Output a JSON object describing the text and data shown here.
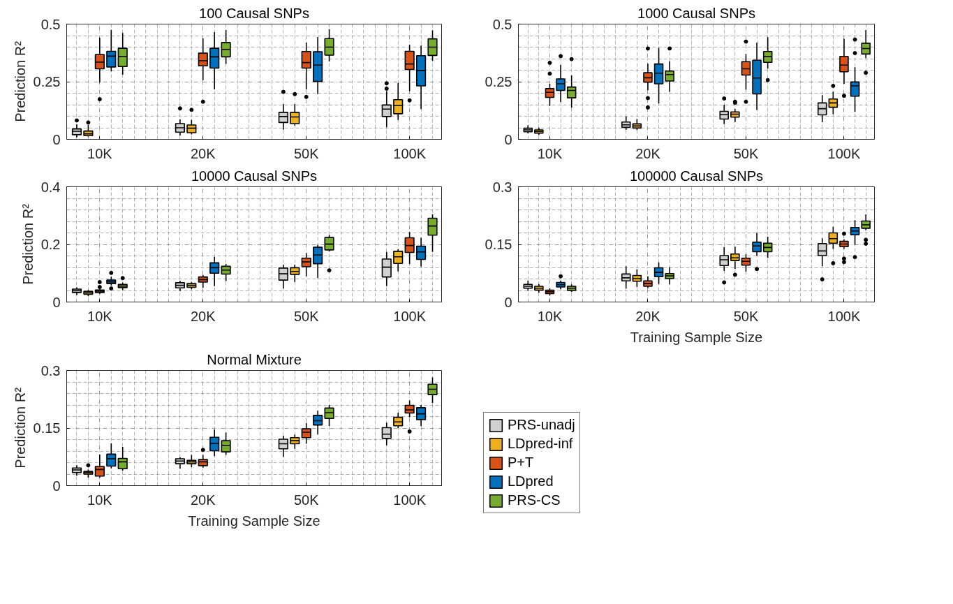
{
  "chart_data": [
    {
      "type": "box",
      "title": "100 Causal SNPs",
      "ylabel": "Prediction R²",
      "categories": [
        "10K",
        "20K",
        "50K",
        "100K"
      ],
      "ylim": [
        0,
        0.5
      ],
      "yticks": [
        0,
        0.25,
        0.5
      ],
      "grid": true,
      "series": [
        {
          "color": "#d0d0d0",
          "boxes": [
            {
              "low": 0.008,
              "q1": 0.02,
              "median": 0.035,
              "q3": 0.045,
              "high": 0.065,
              "outliers": [
                0.082
              ]
            },
            {
              "low": 0.016,
              "q1": 0.031,
              "median": 0.05,
              "q3": 0.068,
              "high": 0.086,
              "outliers": [
                0.134
              ]
            },
            {
              "low": 0.042,
              "q1": 0.073,
              "median": 0.099,
              "q3": 0.117,
              "high": 0.153,
              "outliers": [
                0.206
              ]
            },
            {
              "low": 0.052,
              "q1": 0.099,
              "median": 0.131,
              "q3": 0.149,
              "high": 0.209,
              "outliers": [
                0.243,
                0.22
              ]
            }
          ]
        },
        {
          "color": "#edb120",
          "boxes": [
            {
              "low": 0.01,
              "q1": 0.016,
              "median": 0.024,
              "q3": 0.036,
              "high": 0.063,
              "outliers": [
                0.073
              ]
            },
            {
              "low": 0.021,
              "q1": 0.029,
              "median": 0.048,
              "q3": 0.062,
              "high": 0.084,
              "outliers": [
                0.128
              ]
            },
            {
              "low": 0.06,
              "q1": 0.068,
              "median": 0.097,
              "q3": 0.117,
              "high": 0.153,
              "outliers": [
                0.196
              ]
            },
            {
              "low": 0.084,
              "q1": 0.111,
              "median": 0.146,
              "q3": 0.172,
              "high": 0.245
            }
          ]
        },
        {
          "color": "#d95319",
          "boxes": [
            {
              "low": 0.246,
              "q1": 0.306,
              "median": 0.335,
              "q3": 0.368,
              "high": 0.441,
              "outliers": [
                0.174
              ]
            },
            {
              "low": 0.256,
              "q1": 0.319,
              "median": 0.341,
              "q3": 0.374,
              "high": 0.438,
              "outliers": [
                0.163
              ]
            },
            {
              "low": 0.217,
              "q1": 0.309,
              "median": 0.333,
              "q3": 0.381,
              "high": 0.42,
              "outliers": [
                0.184
              ]
            },
            {
              "low": 0.209,
              "q1": 0.303,
              "median": 0.327,
              "q3": 0.382,
              "high": 0.41,
              "outliers": [
                0.169
              ]
            }
          ]
        },
        {
          "color": "#0072bd",
          "boxes": [
            {
              "low": 0.295,
              "q1": 0.314,
              "median": 0.361,
              "q3": 0.382,
              "high": 0.475
            },
            {
              "low": 0.217,
              "q1": 0.309,
              "median": 0.358,
              "q3": 0.395,
              "high": 0.465
            },
            {
              "low": 0.197,
              "q1": 0.251,
              "median": 0.322,
              "q3": 0.38,
              "high": 0.444
            },
            {
              "low": 0.131,
              "q1": 0.232,
              "median": 0.298,
              "q3": 0.363,
              "high": 0.407
            }
          ]
        },
        {
          "color": "#77ac30",
          "boxes": [
            {
              "low": 0.28,
              "q1": 0.316,
              "median": 0.36,
              "q3": 0.395,
              "high": 0.461
            },
            {
              "low": 0.327,
              "q1": 0.358,
              "median": 0.39,
              "q3": 0.42,
              "high": 0.474
            },
            {
              "low": 0.338,
              "q1": 0.365,
              "median": 0.4,
              "q3": 0.437,
              "high": 0.478
            },
            {
              "low": 0.34,
              "q1": 0.364,
              "median": 0.4,
              "q3": 0.436,
              "high": 0.473
            }
          ]
        }
      ]
    },
    {
      "type": "box",
      "title": "1000 Causal SNPs",
      "categories": [
        "10K",
        "20K",
        "50K",
        "100K"
      ],
      "ylim": [
        0,
        0.5
      ],
      "yticks": [
        0,
        0.25,
        0.5
      ],
      "grid": true,
      "series": [
        {
          "color": "#d0d0d0",
          "boxes": [
            {
              "low": 0.026,
              "q1": 0.033,
              "median": 0.041,
              "q3": 0.048,
              "high": 0.061
            },
            {
              "low": 0.041,
              "q1": 0.052,
              "median": 0.063,
              "q3": 0.075,
              "high": 0.099
            },
            {
              "low": 0.066,
              "q1": 0.088,
              "median": 0.107,
              "q3": 0.121,
              "high": 0.15,
              "outliers": [
                0.177
              ]
            },
            {
              "low": 0.074,
              "q1": 0.106,
              "median": 0.133,
              "q3": 0.158,
              "high": 0.192
            }
          ]
        },
        {
          "color": "#edb120",
          "boxes": [
            {
              "low": 0.019,
              "q1": 0.027,
              "median": 0.034,
              "q3": 0.041,
              "high": 0.051
            },
            {
              "low": 0.04,
              "q1": 0.049,
              "median": 0.058,
              "q3": 0.067,
              "high": 0.088
            },
            {
              "low": 0.075,
              "q1": 0.096,
              "median": 0.109,
              "q3": 0.119,
              "high": 0.132,
              "outliers": [
                0.163,
                0.158
              ]
            },
            {
              "low": 0.109,
              "q1": 0.139,
              "median": 0.158,
              "q3": 0.175,
              "high": 0.207,
              "outliers": [
                0.232
              ]
            }
          ]
        },
        {
          "color": "#d95319",
          "boxes": [
            {
              "low": 0.145,
              "q1": 0.182,
              "median": 0.204,
              "q3": 0.22,
              "high": 0.241,
              "outliers": [
                0.332,
                0.285
              ]
            },
            {
              "low": 0.213,
              "q1": 0.248,
              "median": 0.267,
              "q3": 0.289,
              "high": 0.328,
              "outliers": [
                0.394,
                0.179,
                0.138
              ]
            },
            {
              "low": 0.215,
              "q1": 0.279,
              "median": 0.306,
              "q3": 0.337,
              "high": 0.37,
              "outliers": [
                0.424,
                0.163
              ]
            },
            {
              "low": 0.241,
              "q1": 0.293,
              "median": 0.322,
              "q3": 0.36,
              "high": 0.436,
              "outliers": [
                0.189
              ]
            }
          ]
        },
        {
          "color": "#0072bd",
          "boxes": [
            {
              "low": 0.161,
              "q1": 0.212,
              "median": 0.241,
              "q3": 0.262,
              "high": 0.323,
              "outliers": [
                0.361
              ]
            },
            {
              "low": 0.155,
              "q1": 0.241,
              "median": 0.287,
              "q3": 0.327,
              "high": 0.396
            },
            {
              "low": 0.127,
              "q1": 0.197,
              "median": 0.266,
              "q3": 0.343,
              "high": 0.419
            },
            {
              "low": 0.119,
              "q1": 0.187,
              "median": 0.232,
              "q3": 0.249,
              "high": 0.313,
              "outliers": [
                0.433,
                0.374
              ]
            }
          ]
        },
        {
          "color": "#77ac30",
          "boxes": [
            {
              "low": 0.137,
              "q1": 0.18,
              "median": 0.212,
              "q3": 0.227,
              "high": 0.277,
              "outliers": [
                0.348
              ]
            },
            {
              "low": 0.206,
              "q1": 0.253,
              "median": 0.281,
              "q3": 0.296,
              "high": 0.339,
              "outliers": [
                0.394
              ]
            },
            {
              "low": 0.307,
              "q1": 0.334,
              "median": 0.36,
              "q3": 0.381,
              "high": 0.443,
              "outliers": [
                0.257
              ]
            },
            {
              "low": 0.352,
              "q1": 0.37,
              "median": 0.394,
              "q3": 0.417,
              "high": 0.474,
              "outliers": [
                0.289
              ]
            }
          ]
        }
      ]
    },
    {
      "type": "box",
      "title": "10000 Causal SNPs",
      "ylabel": "Prediction R²",
      "categories": [
        "10K",
        "20K",
        "50K",
        "100K"
      ],
      "ylim": [
        0,
        0.4
      ],
      "yticks": [
        0,
        0.2,
        0.4
      ],
      "grid": true,
      "series": [
        {
          "color": "#d0d0d0",
          "boxes": [
            {
              "low": 0.025,
              "q1": 0.033,
              "median": 0.039,
              "q3": 0.045,
              "high": 0.051
            },
            {
              "low": 0.038,
              "q1": 0.049,
              "median": 0.058,
              "q3": 0.067,
              "high": 0.074
            },
            {
              "low": 0.047,
              "q1": 0.076,
              "median": 0.098,
              "q3": 0.118,
              "high": 0.13
            },
            {
              "low": 0.055,
              "q1": 0.087,
              "median": 0.121,
              "q3": 0.149,
              "high": 0.174
            }
          ]
        },
        {
          "color": "#edb120",
          "boxes": [
            {
              "low": 0.02,
              "q1": 0.027,
              "median": 0.032,
              "q3": 0.037,
              "high": 0.042
            },
            {
              "low": 0.044,
              "q1": 0.051,
              "median": 0.058,
              "q3": 0.064,
              "high": 0.07
            },
            {
              "low": 0.07,
              "q1": 0.096,
              "median": 0.106,
              "q3": 0.119,
              "high": 0.13
            },
            {
              "low": 0.106,
              "q1": 0.134,
              "median": 0.157,
              "q3": 0.176,
              "high": 0.183
            }
          ]
        },
        {
          "color": "#d95319",
          "boxes": [
            {
              "low": 0.027,
              "q1": 0.033,
              "median": 0.038,
              "q3": 0.042,
              "high": 0.045,
              "outliers": [
                0.069,
                0.052
              ]
            },
            {
              "low": 0.049,
              "q1": 0.069,
              "median": 0.078,
              "q3": 0.087,
              "high": 0.094
            },
            {
              "low": 0.089,
              "q1": 0.123,
              "median": 0.139,
              "q3": 0.152,
              "high": 0.17
            },
            {
              "low": 0.132,
              "q1": 0.172,
              "median": 0.196,
              "q3": 0.223,
              "high": 0.243
            }
          ]
        },
        {
          "color": "#0072bd",
          "boxes": [
            {
              "low": 0.057,
              "q1": 0.064,
              "median": 0.07,
              "q3": 0.076,
              "high": 0.087,
              "outliers": [
                0.101,
                0.047
              ]
            },
            {
              "low": 0.055,
              "q1": 0.1,
              "median": 0.119,
              "q3": 0.136,
              "high": 0.157
            },
            {
              "low": 0.083,
              "q1": 0.133,
              "median": 0.163,
              "q3": 0.19,
              "high": 0.199
            },
            {
              "low": 0.123,
              "q1": 0.148,
              "median": 0.174,
              "q3": 0.194,
              "high": 0.223
            }
          ]
        },
        {
          "color": "#77ac30",
          "boxes": [
            {
              "low": 0.042,
              "q1": 0.05,
              "median": 0.055,
              "q3": 0.061,
              "high": 0.067,
              "outliers": [
                0.083
              ]
            },
            {
              "low": 0.073,
              "q1": 0.097,
              "median": 0.111,
              "q3": 0.124,
              "high": 0.132
            },
            {
              "low": 0.175,
              "q1": 0.181,
              "median": 0.201,
              "q3": 0.224,
              "high": 0.233,
              "outliers": [
                0.11
              ]
            },
            {
              "low": 0.174,
              "q1": 0.232,
              "median": 0.264,
              "q3": 0.291,
              "high": 0.304
            }
          ]
        }
      ]
    },
    {
      "type": "box",
      "title": "100000 Causal SNPs",
      "xlabel": "Training Sample Size",
      "categories": [
        "10K",
        "20K",
        "50K",
        "100K"
      ],
      "ylim": [
        0,
        0.3
      ],
      "yticks": [
        0,
        0.15,
        0.3
      ],
      "grid": true,
      "series": [
        {
          "color": "#d0d0d0",
          "boxes": [
            {
              "low": 0.029,
              "q1": 0.036,
              "median": 0.041,
              "q3": 0.046,
              "high": 0.056
            },
            {
              "low": 0.035,
              "q1": 0.055,
              "median": 0.063,
              "q3": 0.073,
              "high": 0.093
            },
            {
              "low": 0.081,
              "q1": 0.095,
              "median": 0.11,
              "q3": 0.121,
              "high": 0.143,
              "outliers": [
                0.051
              ]
            },
            {
              "low": 0.093,
              "q1": 0.121,
              "median": 0.133,
              "q3": 0.152,
              "high": 0.166,
              "outliers": [
                0.059
              ]
            }
          ]
        },
        {
          "color": "#edb120",
          "boxes": [
            {
              "low": 0.024,
              "q1": 0.031,
              "median": 0.036,
              "q3": 0.041,
              "high": 0.047
            },
            {
              "low": 0.039,
              "q1": 0.054,
              "median": 0.061,
              "q3": 0.069,
              "high": 0.085
            },
            {
              "low": 0.086,
              "q1": 0.108,
              "median": 0.115,
              "q3": 0.125,
              "high": 0.144,
              "outliers": [
                0.071
              ]
            },
            {
              "low": 0.138,
              "q1": 0.153,
              "median": 0.165,
              "q3": 0.18,
              "high": 0.196,
              "outliers": [
                0.101
              ]
            }
          ]
        },
        {
          "color": "#d95319",
          "boxes": [
            {
              "low": 0.017,
              "q1": 0.022,
              "median": 0.027,
              "q3": 0.031,
              "high": 0.036
            },
            {
              "low": 0.036,
              "q1": 0.041,
              "median": 0.048,
              "q3": 0.055,
              "high": 0.067
            },
            {
              "low": 0.079,
              "q1": 0.096,
              "median": 0.106,
              "q3": 0.114,
              "high": 0.124
            },
            {
              "low": 0.138,
              "q1": 0.144,
              "median": 0.151,
              "q3": 0.158,
              "high": 0.163,
              "outliers": [
                0.178,
                0.113,
                0.104
              ]
            }
          ]
        },
        {
          "color": "#0072bd",
          "boxes": [
            {
              "low": 0.033,
              "q1": 0.039,
              "median": 0.045,
              "q3": 0.051,
              "high": 0.056,
              "outliers": [
                0.067
              ]
            },
            {
              "low": 0.047,
              "q1": 0.066,
              "median": 0.077,
              "q3": 0.089,
              "high": 0.103
            },
            {
              "low": 0.12,
              "q1": 0.131,
              "median": 0.146,
              "q3": 0.156,
              "high": 0.18,
              "outliers": [
                0.086
              ]
            },
            {
              "low": 0.149,
              "q1": 0.175,
              "median": 0.185,
              "q3": 0.194,
              "high": 0.213,
              "outliers": [
                0.117
              ]
            }
          ]
        },
        {
          "color": "#77ac30",
          "boxes": [
            {
              "low": 0.026,
              "q1": 0.03,
              "median": 0.036,
              "q3": 0.041,
              "high": 0.046
            },
            {
              "low": 0.046,
              "q1": 0.061,
              "median": 0.068,
              "q3": 0.074,
              "high": 0.091
            },
            {
              "low": 0.115,
              "q1": 0.131,
              "median": 0.142,
              "q3": 0.153,
              "high": 0.17
            },
            {
              "low": 0.187,
              "q1": 0.192,
              "median": 0.201,
              "q3": 0.211,
              "high": 0.228,
              "outliers": [
                0.162,
                0.152
              ]
            }
          ]
        }
      ]
    },
    {
      "type": "box",
      "title": "Normal Mixture",
      "ylabel": "Prediction R²",
      "xlabel": "Training Sample Size",
      "categories": [
        "10K",
        "20K",
        "50K",
        "100K"
      ],
      "ylim": [
        0,
        0.3
      ],
      "yticks": [
        0,
        0.15,
        0.3
      ],
      "grid": true,
      "legend": "right",
      "series": [
        {
          "name": "PRS-unadj",
          "color": "#d0d0d0",
          "boxes": [
            {
              "low": 0.026,
              "q1": 0.034,
              "median": 0.041,
              "q3": 0.046,
              "high": 0.053
            },
            {
              "low": 0.044,
              "q1": 0.057,
              "median": 0.064,
              "q3": 0.07,
              "high": 0.074
            },
            {
              "low": 0.075,
              "q1": 0.096,
              "median": 0.109,
              "q3": 0.121,
              "high": 0.13
            },
            {
              "low": 0.105,
              "q1": 0.123,
              "median": 0.134,
              "q3": 0.151,
              "high": 0.164
            }
          ]
        },
        {
          "name": "LDpred-inf",
          "color": "#edb120",
          "boxes": [
            {
              "low": 0.021,
              "q1": 0.03,
              "median": 0.034,
              "q3": 0.037,
              "high": 0.042,
              "outliers": [
                0.053
              ]
            },
            {
              "low": 0.048,
              "q1": 0.057,
              "median": 0.062,
              "q3": 0.066,
              "high": 0.08
            },
            {
              "low": 0.096,
              "q1": 0.109,
              "median": 0.117,
              "q3": 0.125,
              "high": 0.133
            },
            {
              "low": 0.15,
              "q1": 0.156,
              "median": 0.166,
              "q3": 0.178,
              "high": 0.19
            }
          ]
        },
        {
          "name": "P+T",
          "color": "#d95319",
          "boxes": [
            {
              "low": 0.021,
              "q1": 0.025,
              "median": 0.042,
              "q3": 0.05,
              "high": 0.081
            },
            {
              "low": 0.047,
              "q1": 0.052,
              "median": 0.062,
              "q3": 0.068,
              "high": 0.08,
              "outliers": [
                0.093
              ]
            },
            {
              "low": 0.109,
              "q1": 0.125,
              "median": 0.139,
              "q3": 0.148,
              "high": 0.163
            },
            {
              "low": 0.178,
              "q1": 0.189,
              "median": 0.197,
              "q3": 0.209,
              "high": 0.222,
              "outliers": [
                0.141
              ]
            }
          ]
        },
        {
          "name": "LDpred",
          "color": "#0072bd",
          "boxes": [
            {
              "low": 0.045,
              "q1": 0.051,
              "median": 0.07,
              "q3": 0.082,
              "high": 0.11
            },
            {
              "low": 0.077,
              "q1": 0.091,
              "median": 0.11,
              "q3": 0.126,
              "high": 0.146
            },
            {
              "low": 0.133,
              "q1": 0.158,
              "median": 0.169,
              "q3": 0.183,
              "high": 0.195
            },
            {
              "low": 0.155,
              "q1": 0.172,
              "median": 0.187,
              "q3": 0.203,
              "high": 0.21
            }
          ]
        },
        {
          "name": "PRS-CS",
          "color": "#77ac30",
          "boxes": [
            {
              "low": 0.039,
              "q1": 0.044,
              "median": 0.062,
              "q3": 0.071,
              "high": 0.101
            },
            {
              "low": 0.08,
              "q1": 0.088,
              "median": 0.105,
              "q3": 0.117,
              "high": 0.138
            },
            {
              "low": 0.155,
              "q1": 0.175,
              "median": 0.19,
              "q3": 0.202,
              "high": 0.21
            },
            {
              "low": 0.215,
              "q1": 0.237,
              "median": 0.251,
              "q3": 0.264,
              "high": 0.282
            }
          ]
        }
      ]
    }
  ]
}
